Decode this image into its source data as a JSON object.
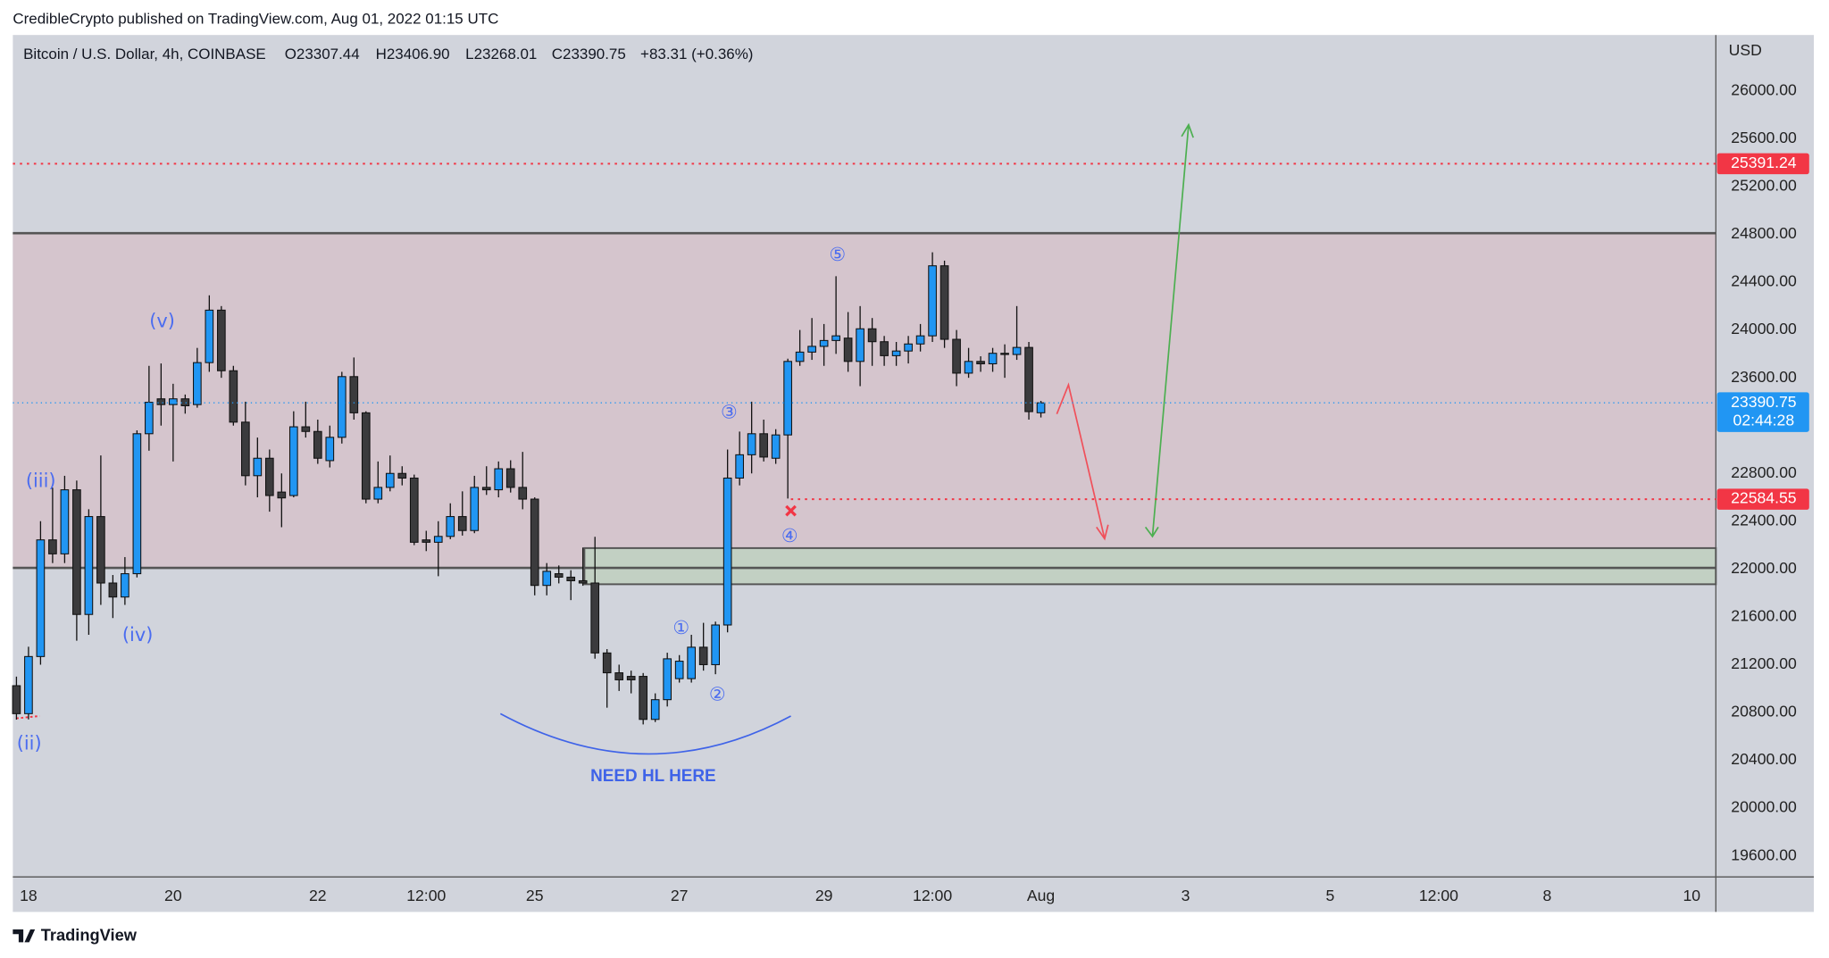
{
  "header": {
    "publisher": "CredibleCrypto published on TradingView.com, Aug 01, 2022 01:15 UTC",
    "footer": "TradingView"
  },
  "chart_data": {
    "type": "candlestick",
    "title": "Bitcoin / U.S. Dollar, 4h, COINBASE",
    "ohlc_labels": [
      "O23307.44",
      "H23406.90",
      "L23268.01",
      "C23390.75",
      "+83.31 (+0.36%)"
    ],
    "axis_unit": "USD",
    "up_color": "#2196f3",
    "down_color": "#3b3b3d",
    "open": [
      21024,
      20790,
      21268,
      22244,
      22127,
      22663,
      21620,
      22439,
      21883,
      21766,
      21961,
      23132,
      23424,
      23376,
      23424,
      23376,
      23727,
      24166,
      23659,
      23229,
      22781,
      22927,
      22644,
      22615,
      23190,
      23151,
      22907,
      23102,
      23610,
      23307,
      22585,
      22683,
      22800,
      22761,
      22244,
      22224,
      22273,
      22439,
      22322,
      22683,
      22663,
      22839,
      22683,
      22585,
      21863,
      21961,
      21932,
      21902,
      21883,
      21298,
      21132,
      21102,
      21102,
      20742,
      20907,
      21083,
      21083,
      21346,
      21200,
      21532,
      22761,
      22956,
      23132,
      22927,
      23122,
      23737,
      23815,
      23863,
      23912,
      23932,
      23737,
      24010,
      23902,
      23785,
      23824,
      23883,
      23951,
      24537,
      23922,
      23639,
      23737,
      23717,
      23805,
      23795,
      23854,
      23307.44
    ],
    "high": [
      21100,
      21350,
      22400,
      22680,
      22780,
      22740,
      22500,
      22950,
      21950,
      22100,
      23160,
      23700,
      23720,
      23550,
      23460,
      23850,
      24290,
      24200,
      23700,
      23400,
      23100,
      23000,
      22800,
      23320,
      23400,
      23250,
      23200,
      23650,
      23770,
      23320,
      22900,
      22950,
      22860,
      22790,
      22320,
      22400,
      22550,
      22650,
      22780,
      22860,
      22900,
      22910,
      22980,
      22600,
      22050,
      22030,
      21990,
      22180,
      22270,
      21330,
      21200,
      21150,
      21130,
      20960,
      21300,
      21280,
      21450,
      21550,
      21560,
      23000,
      23150,
      23400,
      23250,
      23170,
      23760,
      24000,
      24100,
      24050,
      24450,
      24150,
      24200,
      24100,
      23950,
      23900,
      23950,
      24050,
      24650,
      24580,
      24000,
      23850,
      23780,
      23850,
      23880,
      24200,
      23900,
      23406.9
    ],
    "low": [
      20740,
      20742,
      21200,
      22050,
      22050,
      21400,
      21450,
      21700,
      21590,
      21700,
      21930,
      22990,
      23200,
      22900,
      23300,
      23350,
      23650,
      23600,
      23200,
      22700,
      22600,
      22480,
      22350,
      22600,
      23100,
      22880,
      22850,
      23050,
      23250,
      22550,
      22550,
      22650,
      22700,
      22200,
      22150,
      21940,
      22250,
      22280,
      22300,
      22620,
      22600,
      22640,
      22500,
      21780,
      21780,
      21880,
      21740,
      21860,
      21250,
      20840,
      20980,
      20960,
      20700,
      20720,
      20850,
      21050,
      21050,
      21150,
      21120,
      21470,
      22700,
      22800,
      22900,
      22880,
      22590,
      23700,
      23750,
      23700,
      23800,
      23650,
      23530,
      23700,
      23700,
      23700,
      23720,
      23820,
      23900,
      23850,
      23530,
      23600,
      23650,
      23650,
      23600,
      23750,
      23250,
      23268.01
    ],
    "close": [
      20790,
      21268,
      22244,
      22127,
      22663,
      21620,
      22439,
      21883,
      21766,
      21961,
      23132,
      23395,
      23376,
      23424,
      23366,
      23727,
      24166,
      23659,
      23229,
      22781,
      22927,
      22615,
      22595,
      23190,
      23151,
      22927,
      23102,
      23610,
      23307,
      22585,
      22683,
      22800,
      22761,
      22224,
      22224,
      22273,
      22439,
      22322,
      22683,
      22663,
      22839,
      22683,
      22585,
      21863,
      21981,
      21932,
      21902,
      21883,
      21298,
      21132,
      21073,
      21073,
      20742,
      20907,
      21249,
      21229,
      21346,
      21200,
      21532,
      22761,
      22956,
      23132,
      22937,
      23122,
      23737,
      23815,
      23863,
      23912,
      23951,
      23737,
      24010,
      23902,
      23785,
      23824,
      23883,
      23951,
      24537,
      23922,
      23639,
      23737,
      23717,
      23805,
      23795,
      23854,
      23317,
      23390.75
    ],
    "xlim": [
      -0.3,
      141
    ],
    "xticks": [
      {
        "value": 1,
        "label": "18"
      },
      {
        "value": 13,
        "label": "20"
      },
      {
        "value": 25,
        "label": "22"
      },
      {
        "value": 34,
        "label": "12:00"
      },
      {
        "value": 43,
        "label": "25"
      },
      {
        "value": 55,
        "label": "27"
      },
      {
        "value": 67,
        "label": "29"
      },
      {
        "value": 76,
        "label": "12:00"
      },
      {
        "value": 85,
        "label": "Aug"
      },
      {
        "value": 97,
        "label": "3"
      },
      {
        "value": 109,
        "label": "5"
      },
      {
        "value": 118,
        "label": "12:00"
      },
      {
        "value": 127,
        "label": "8"
      },
      {
        "value": 139,
        "label": "10"
      }
    ],
    "ylim": [
      19424,
      26468
    ],
    "yticks": [
      {
        "value": 19600,
        "label": "19600.00"
      },
      {
        "value": 20000,
        "label": "20000.00"
      },
      {
        "value": 20400,
        "label": "20400.00"
      },
      {
        "value": 20800,
        "label": "20800.00"
      },
      {
        "value": 21200,
        "label": "21200.00"
      },
      {
        "value": 21600,
        "label": "21600.00"
      },
      {
        "value": 22000,
        "label": "22000.00"
      },
      {
        "value": 22400,
        "label": "22400.00"
      },
      {
        "value": 22800,
        "label": "22800.00"
      },
      {
        "value": 23200,
        "label": "23200.00"
      },
      {
        "value": 23600,
        "label": "23600.00"
      },
      {
        "value": 24000,
        "label": "24000.00"
      },
      {
        "value": 24400,
        "label": "24400.00"
      },
      {
        "value": 24800,
        "label": "24800.00"
      },
      {
        "value": 25200,
        "label": "25200.00"
      },
      {
        "value": 25600,
        "label": "25600.00"
      },
      {
        "value": 26000,
        "label": "26000.00"
      }
    ],
    "grid": false,
    "levels": [
      {
        "value": 25391.24,
        "color": "#f23645"
      },
      {
        "value": 22584.55,
        "color": "#f23645"
      }
    ],
    "countdown": "02:44:28",
    "annotations": [
      "(ii)",
      "(iii)",
      "(iv)",
      "(v)",
      "①",
      "②",
      "③",
      "④",
      "⑤",
      "NEED HL HERE"
    ]
  }
}
